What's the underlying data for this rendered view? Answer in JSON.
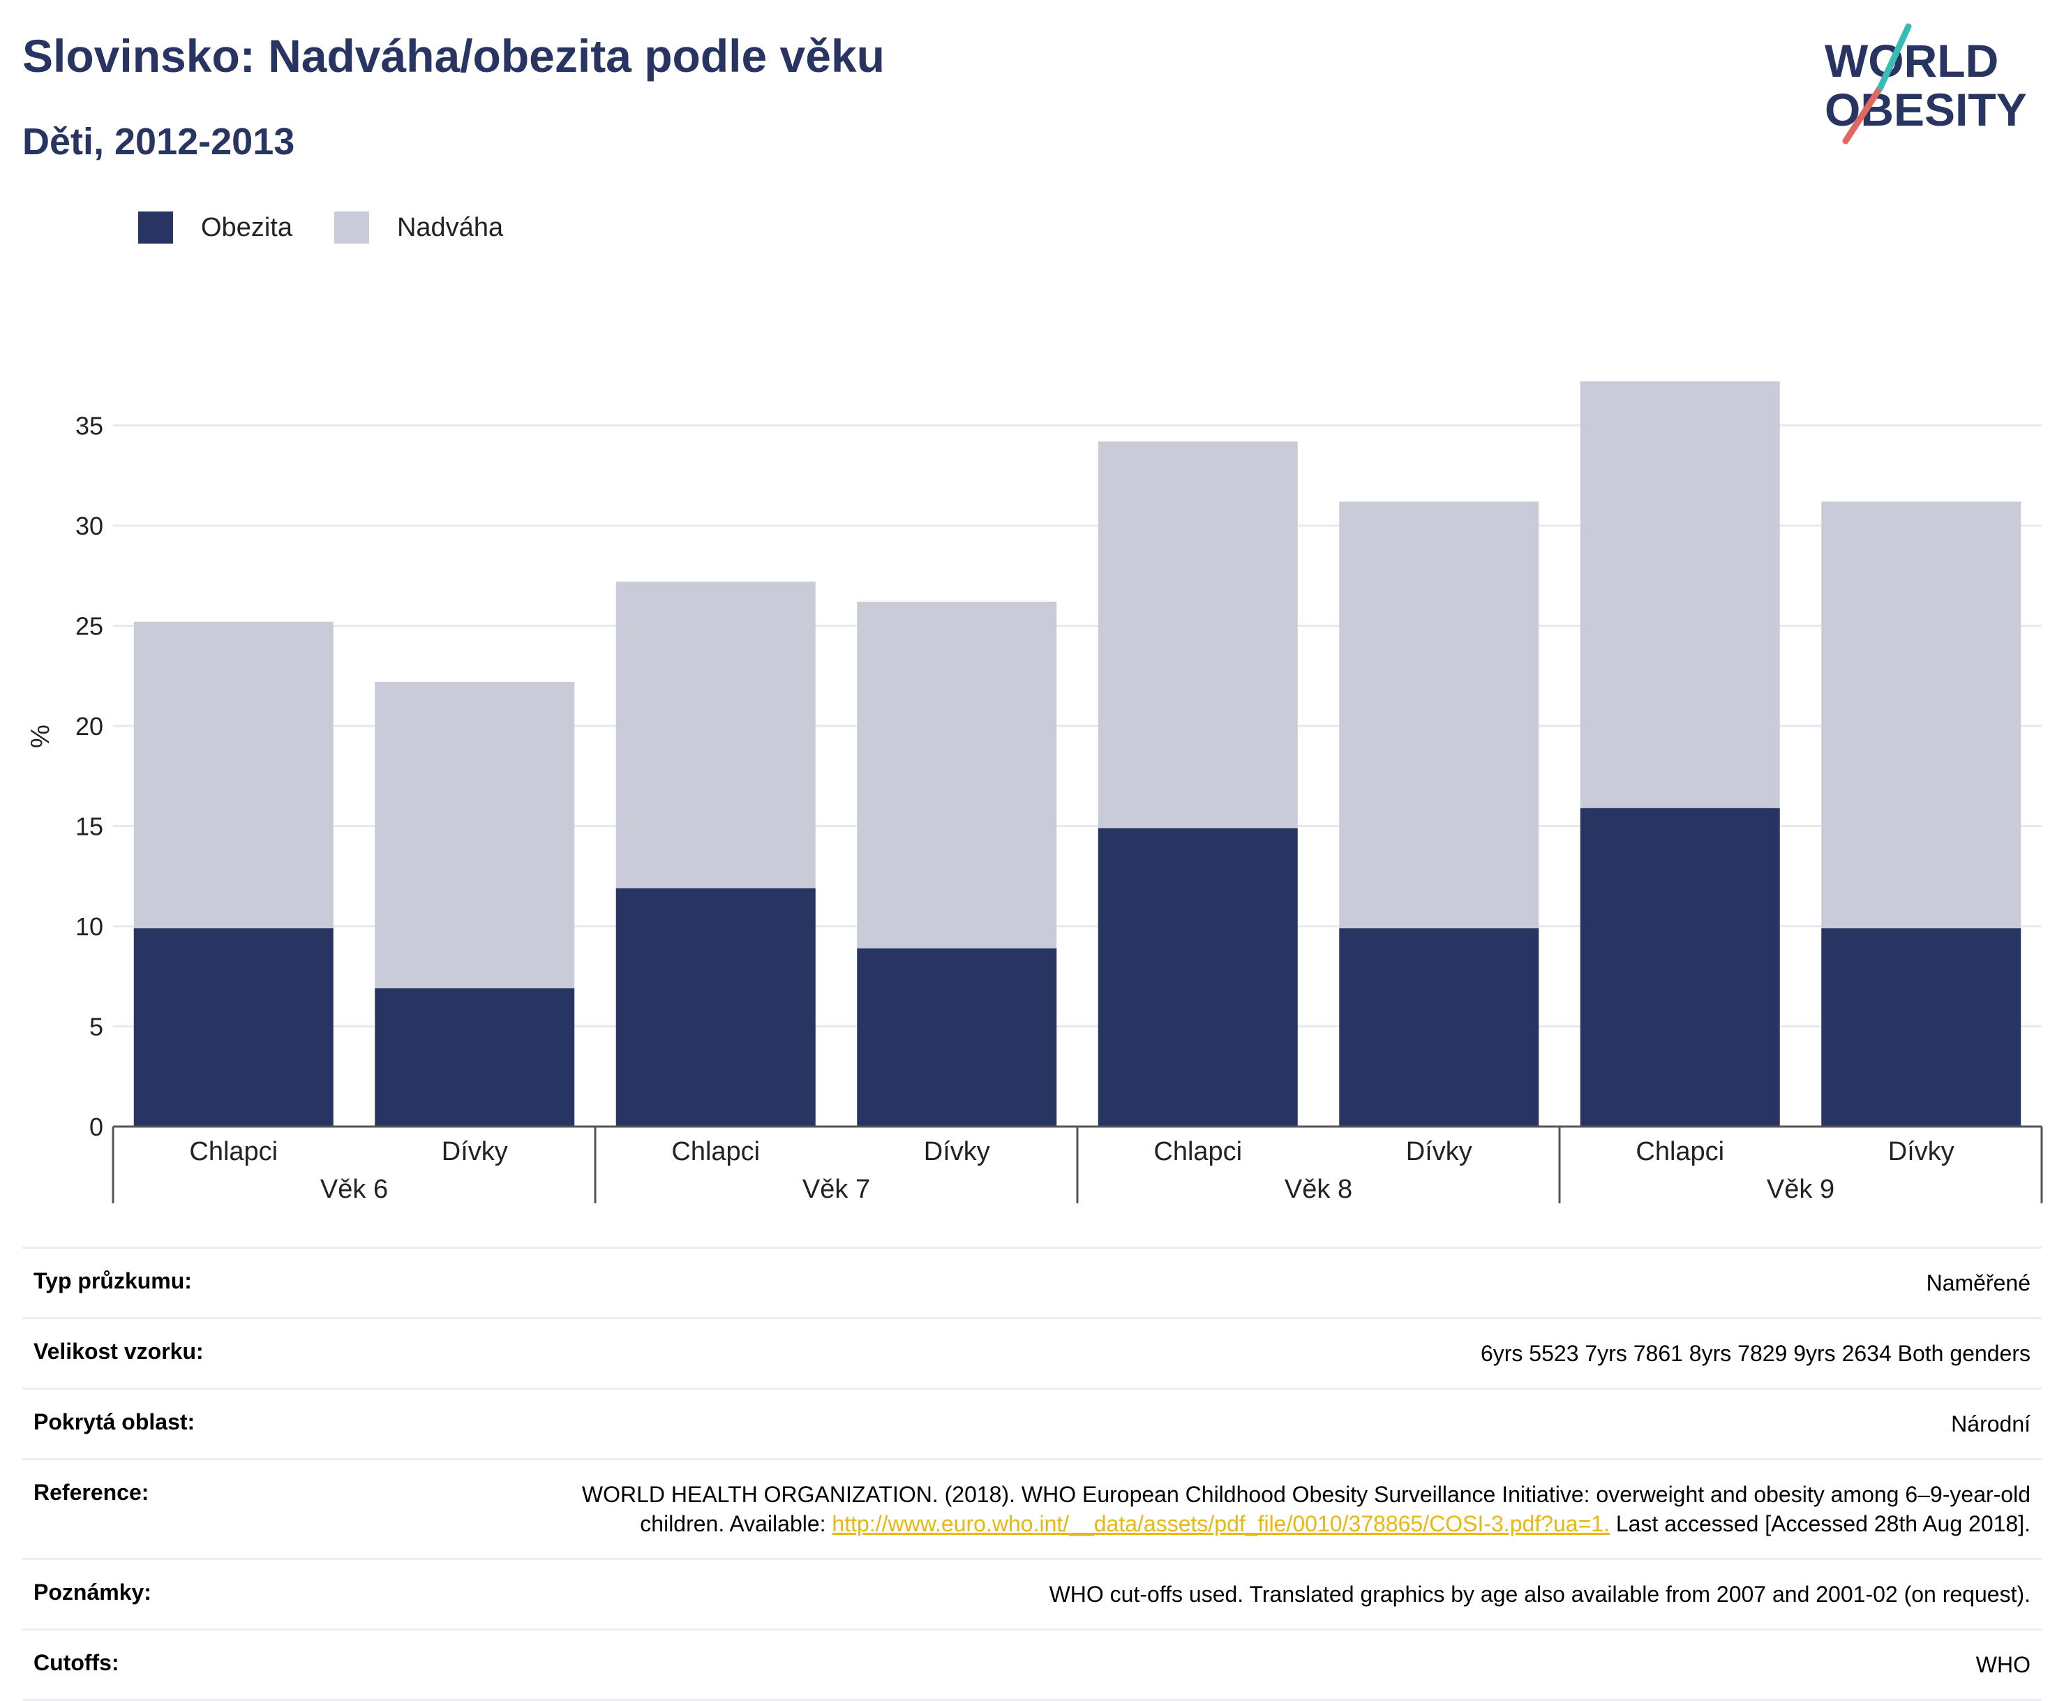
{
  "header": {
    "title": "Slovinsko: Nadváha/obezita podle věku",
    "subtitle": "Děti, 2012-2013"
  },
  "logo": {
    "line1": "WORLD",
    "line2": "OBESITY"
  },
  "legend": {
    "obesity": "Obezita",
    "overweight": "Nadváha"
  },
  "colors": {
    "obesity": "#283462",
    "overweight": "#cacbd8",
    "logo_teal": "#38bcb4",
    "logo_red": "#e0685e"
  },
  "chart_data": {
    "type": "bar",
    "stacked": true,
    "ylabel": "%",
    "ylim": [
      0,
      40
    ],
    "yticks": [
      0,
      5,
      10,
      15,
      20,
      25,
      30,
      35
    ],
    "grid": true,
    "legend_position": "top-left",
    "groups": [
      "Věk 6",
      "Věk 7",
      "Věk 8",
      "Věk 9"
    ],
    "categories": [
      "Chlapci",
      "Dívky",
      "Chlapci",
      "Dívky",
      "Chlapci",
      "Dívky",
      "Chlapci",
      "Dívky"
    ],
    "series": [
      {
        "name": "Obezita",
        "values": [
          9.9,
          6.9,
          11.9,
          8.9,
          14.9,
          9.9,
          15.9,
          9.9
        ]
      },
      {
        "name": "Nadváha",
        "values": [
          15.3,
          15.3,
          15.3,
          17.3,
          19.3,
          21.3,
          21.3,
          21.3
        ]
      }
    ]
  },
  "meta": [
    {
      "label": "Typ průzkumu:",
      "value": "Naměřené"
    },
    {
      "label": "Velikost vzorku:",
      "value": "6yrs 5523 7yrs 7861 8yrs 7829 9yrs 2634 Both genders"
    },
    {
      "label": "Pokrytá oblast:",
      "value": "Národní"
    },
    {
      "label": "Reference:",
      "value_before": "WORLD HEALTH ORGANIZATION. (2018). WHO European Childhood Obesity Surveillance Initiative: overweight and obesity among 6–9-year-old children. Available: ",
      "link": "http://www.euro.who.int/__data/assets/pdf_file/0010/378865/COSI-3.pdf?ua=1.",
      "value_after": " Last accessed [Accessed 28th Aug 2018]."
    },
    {
      "label": "Poznámky:",
      "value": "WHO cut-offs used. Translated graphics by age also available from 2007 and 2001-02 (on request)."
    },
    {
      "label": "Cutoffs:",
      "value": "WHO"
    }
  ]
}
